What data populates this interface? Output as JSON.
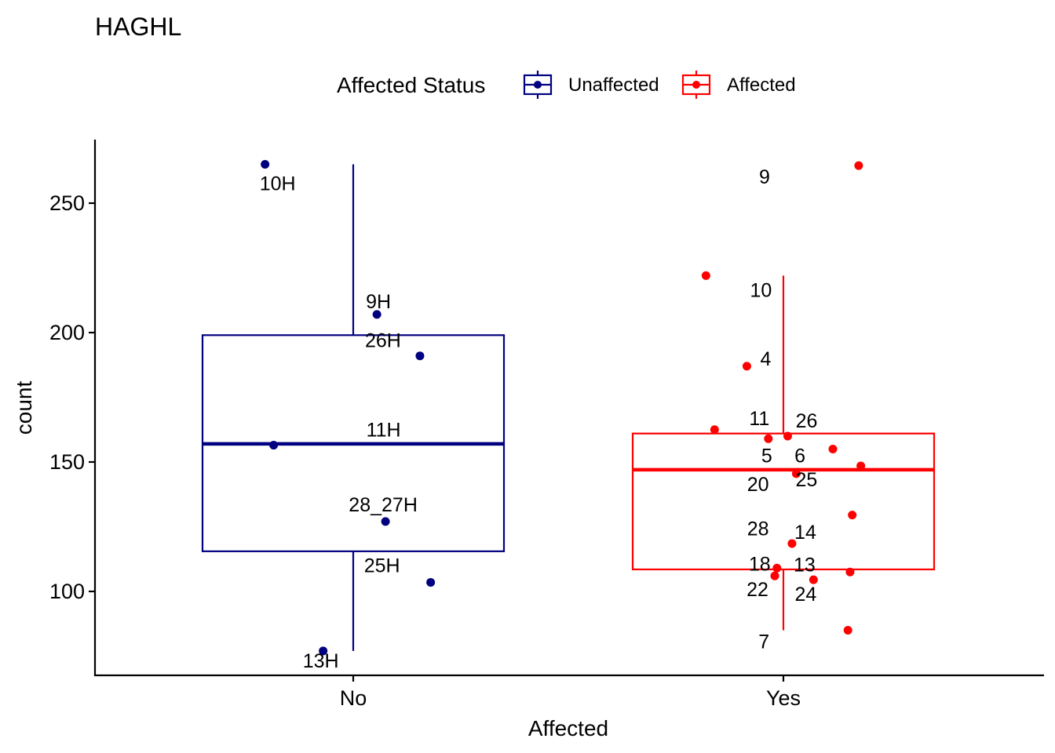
{
  "chart_data": {
    "type": "boxplot",
    "title": "HAGHL",
    "xlabel": "Affected",
    "ylabel": "count",
    "ylim": [
      70,
      275
    ],
    "yticks": [
      100,
      150,
      200,
      250
    ],
    "categories": [
      "No",
      "Yes"
    ],
    "legend": {
      "title": "Affected Status",
      "position": "top",
      "entries": [
        {
          "label": "Unaffected",
          "color": "#000080"
        },
        {
          "label": "Affected",
          "color": "#ff0000"
        }
      ]
    },
    "series": [
      {
        "name": "Unaffected",
        "category": "No",
        "color": "#000080",
        "box": {
          "whisker_low": 77,
          "q1": 115.5,
          "median": 157,
          "q3": 199,
          "whisker_high": 265
        },
        "points": [
          {
            "value": 265,
            "jitter": -0.205,
            "label": "10H"
          },
          {
            "value": 207,
            "jitter": 0.055,
            "label": "9H"
          },
          {
            "value": 191,
            "jitter": 0.155,
            "label": "26H"
          },
          {
            "value": 156.5,
            "jitter": -0.185,
            "label": "11H"
          },
          {
            "value": 127,
            "jitter": 0.075,
            "label": "28_27H"
          },
          {
            "value": 103.5,
            "jitter": 0.18,
            "label": "25H"
          },
          {
            "value": 77,
            "jitter": -0.07,
            "label": "13H"
          }
        ]
      },
      {
        "name": "Affected",
        "category": "Yes",
        "color": "#ff0000",
        "box": {
          "whisker_low": 85,
          "q1": 108.5,
          "median": 147,
          "q3": 161,
          "whisker_high": 222
        },
        "points": [
          {
            "value": 264.5,
            "jitter": 0.175,
            "label": "9"
          },
          {
            "value": 222,
            "jitter": -0.18,
            "label": "10"
          },
          {
            "value": 187,
            "jitter": -0.085,
            "label": "4"
          },
          {
            "value": 162.5,
            "jitter": -0.16,
            "label": "11"
          },
          {
            "value": 160,
            "jitter": 0.01,
            "label": "26"
          },
          {
            "value": 159,
            "jitter": -0.035,
            "label": "5"
          },
          {
            "value": 155,
            "jitter": 0.115,
            "label": "6"
          },
          {
            "value": 148.5,
            "jitter": 0.18,
            "label": "20"
          },
          {
            "value": 145.5,
            "jitter": 0.03,
            "label": "25"
          },
          {
            "value": 129.5,
            "jitter": 0.16,
            "label": "28"
          },
          {
            "value": 118.5,
            "jitter": 0.02,
            "label": "14"
          },
          {
            "value": 109,
            "jitter": -0.015,
            "label": "18"
          },
          {
            "value": 107.5,
            "jitter": 0.155,
            "label": "13"
          },
          {
            "value": 106,
            "jitter": -0.02,
            "label": "22"
          },
          {
            "value": 104.5,
            "jitter": 0.07,
            "label": "24"
          },
          {
            "value": 85,
            "jitter": 0.15,
            "label": "7"
          }
        ]
      }
    ]
  }
}
